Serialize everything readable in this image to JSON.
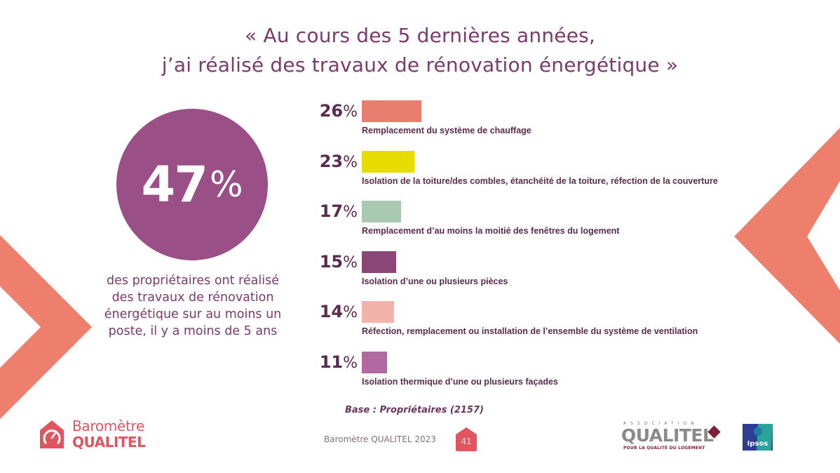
{
  "title": {
    "line1": "« Au cours des 5 dernières années,",
    "line2": "j’ai réalisé des travaux de rénovation énergétique »"
  },
  "headline": {
    "value": "47",
    "percent_sign": "%",
    "caption_lines": [
      "des propriétaires ont réalisé",
      "des travaux de rénovation",
      "énergétique sur au moins un",
      "poste, il y a moins de 5 ans"
    ],
    "circle_color": "#9a4f87"
  },
  "chart_data": {
    "type": "bar",
    "orientation": "horizontal",
    "title": "« Au cours des 5 dernières années, j’ai réalisé des travaux de rénovation énergétique »",
    "xlabel": "",
    "ylabel": "",
    "unit": "%",
    "xlim": [
      0,
      100
    ],
    "grid": false,
    "legend": "none",
    "categories": [
      "Remplacement du système de chauffage",
      "Isolation de la toiture/des combles, étanchéité de la toiture, réfection de la couverture",
      "Remplacement d’au moins la moitié des fenêtres du logement",
      "Isolation d’une ou plusieurs pièces",
      "Réfection, remplacement ou installation de l’ensemble du système de ventilation",
      "Isolation thermique d’une ou plusieurs façades"
    ],
    "values": [
      26,
      23,
      17,
      15,
      14,
      11
    ],
    "value_labels": [
      "26",
      "23",
      "17",
      "15",
      "14",
      "11"
    ],
    "percent_sign": "%",
    "colors": [
      "#e87e6e",
      "#e6dc00",
      "#a9c9b0",
      "#8a4677",
      "#f2b3aa",
      "#b06a9f"
    ]
  },
  "footer": {
    "base_note": "Base : Propriétaires (2157)",
    "report_name": "Baromètre QUALITEL 2023",
    "page_number": "41",
    "brand_line1": "Baromètre",
    "brand_line2": "QUALITEL",
    "association_small": "ASSOCIATION",
    "association_name": "QUALITEL",
    "association_tagline": "POUR LA QUALITÉ DU LOGEMENT",
    "partner_name": "Ipsos"
  },
  "colors": {
    "accent_coral": "#ef7f6d",
    "text_purple": "#7b3a6d",
    "brand_red": "#e05560"
  }
}
